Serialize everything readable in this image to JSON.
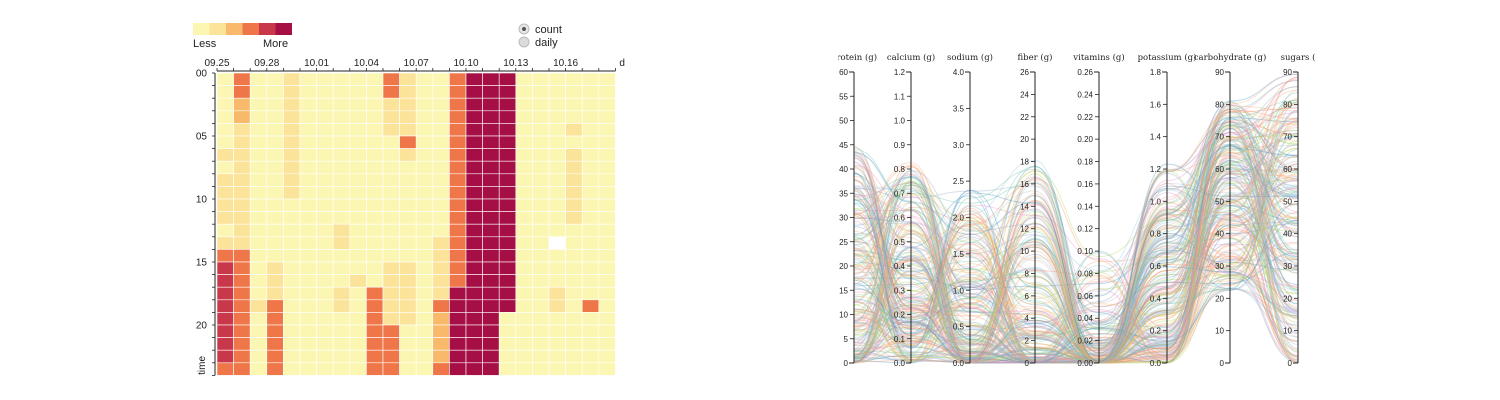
{
  "chart_data": [
    {
      "type": "heatmap",
      "legend": {
        "less_label": "Less",
        "more_label": "More",
        "colors": [
          "#fbf7b3",
          "#fbe39a",
          "#f8b96a",
          "#ef7648",
          "#c8384a",
          "#a50f45"
        ]
      },
      "toggle": [
        {
          "label": "count",
          "selected": true
        },
        {
          "label": "daily",
          "selected": false
        }
      ],
      "xlabel": "date",
      "ylabel": "time",
      "x_ticks": [
        {
          "label": "09.25",
          "col": 0
        },
        {
          "label": "09.28",
          "col": 3
        },
        {
          "label": "10.01",
          "col": 6
        },
        {
          "label": "10.04",
          "col": 9
        },
        {
          "label": "10.07",
          "col": 12
        },
        {
          "label": "10.10",
          "col": 15
        },
        {
          "label": "10.13",
          "col": 18
        },
        {
          "label": "10.16",
          "col": 21
        }
      ],
      "y_ticks": [
        {
          "label": "00",
          "row": 0
        },
        {
          "label": "05",
          "row": 5
        },
        {
          "label": "10",
          "row": 10
        },
        {
          "label": "15",
          "row": 15
        },
        {
          "label": "20",
          "row": 20
        }
      ],
      "grid": [
        [
          0,
          3,
          0,
          0,
          1,
          0,
          0,
          0,
          0,
          0,
          3,
          1,
          0,
          0,
          3,
          5,
          5,
          5,
          0,
          0,
          0,
          0,
          0,
          0
        ],
        [
          0,
          3,
          0,
          0,
          1,
          0,
          0,
          0,
          0,
          0,
          3,
          1,
          0,
          0,
          3,
          5,
          5,
          5,
          0,
          0,
          0,
          0,
          0,
          0
        ],
        [
          0,
          2,
          0,
          0,
          1,
          0,
          0,
          0,
          0,
          0,
          1,
          1,
          0,
          0,
          3,
          5,
          5,
          5,
          0,
          0,
          0,
          0,
          0,
          0
        ],
        [
          0,
          2,
          0,
          0,
          1,
          0,
          0,
          0,
          0,
          0,
          1,
          1,
          0,
          0,
          3,
          5,
          5,
          5,
          0,
          0,
          0,
          0,
          0,
          0
        ],
        [
          0,
          1,
          0,
          0,
          1,
          0,
          0,
          0,
          0,
          0,
          1,
          1,
          0,
          0,
          3,
          5,
          5,
          5,
          0,
          0,
          0,
          1,
          0,
          0
        ],
        [
          0,
          1,
          0,
          0,
          1,
          0,
          0,
          0,
          0,
          0,
          0,
          3,
          0,
          0,
          3,
          5,
          5,
          5,
          0,
          0,
          0,
          0,
          0,
          0
        ],
        [
          1,
          1,
          0,
          0,
          1,
          0,
          0,
          0,
          0,
          0,
          0,
          1,
          0,
          0,
          3,
          5,
          5,
          5,
          0,
          0,
          0,
          1,
          0,
          0
        ],
        [
          0,
          1,
          0,
          0,
          1,
          0,
          0,
          0,
          0,
          0,
          0,
          0,
          0,
          0,
          3,
          5,
          5,
          5,
          0,
          0,
          0,
          1,
          0,
          0
        ],
        [
          1,
          1,
          0,
          0,
          1,
          0,
          0,
          0,
          0,
          0,
          0,
          0,
          0,
          0,
          3,
          5,
          5,
          5,
          0,
          0,
          0,
          1,
          0,
          0
        ],
        [
          1,
          1,
          0,
          0,
          1,
          0,
          0,
          0,
          0,
          0,
          0,
          0,
          0,
          0,
          3,
          5,
          5,
          5,
          0,
          0,
          0,
          1,
          0,
          0
        ],
        [
          1,
          1,
          0,
          0,
          0,
          0,
          0,
          0,
          0,
          0,
          0,
          0,
          0,
          0,
          3,
          5,
          5,
          5,
          0,
          0,
          0,
          1,
          0,
          0
        ],
        [
          1,
          1,
          0,
          0,
          0,
          0,
          0,
          0,
          0,
          0,
          0,
          0,
          0,
          0,
          3,
          5,
          5,
          5,
          0,
          0,
          0,
          1,
          0,
          0
        ],
        [
          0,
          1,
          0,
          0,
          0,
          0,
          0,
          1,
          0,
          0,
          0,
          0,
          0,
          0,
          3,
          5,
          5,
          5,
          0,
          0,
          0,
          0,
          0,
          0
        ],
        [
          1,
          1,
          0,
          0,
          0,
          0,
          0,
          1,
          0,
          0,
          0,
          0,
          0,
          1,
          3,
          5,
          5,
          5,
          0,
          0,
          -1,
          0,
          0,
          0
        ],
        [
          3,
          3,
          0,
          0,
          0,
          0,
          0,
          0,
          0,
          0,
          0,
          0,
          0,
          1,
          3,
          5,
          5,
          5,
          0,
          0,
          0,
          0,
          0,
          0
        ],
        [
          4,
          3,
          0,
          1,
          0,
          0,
          0,
          0,
          0,
          0,
          1,
          1,
          0,
          1,
          3,
          5,
          5,
          5,
          0,
          0,
          0,
          0,
          0,
          0
        ],
        [
          4,
          3,
          0,
          1,
          0,
          0,
          0,
          0,
          1,
          0,
          1,
          1,
          0,
          1,
          3,
          5,
          5,
          5,
          0,
          0,
          0,
          0,
          0,
          0
        ],
        [
          4,
          3,
          0,
          1,
          0,
          0,
          0,
          1,
          0,
          3,
          1,
          1,
          0,
          1,
          5,
          5,
          5,
          5,
          0,
          0,
          1,
          0,
          0,
          0
        ],
        [
          4,
          3,
          1,
          3,
          0,
          0,
          0,
          1,
          0,
          3,
          1,
          1,
          0,
          3,
          5,
          5,
          5,
          5,
          0,
          0,
          1,
          0,
          3,
          0
        ],
        [
          4,
          3,
          0,
          3,
          0,
          0,
          0,
          0,
          0,
          3,
          1,
          1,
          0,
          2,
          5,
          5,
          5,
          0,
          0,
          0,
          0,
          0,
          0,
          0
        ],
        [
          4,
          3,
          0,
          3,
          0,
          0,
          0,
          0,
          0,
          3,
          3,
          0,
          0,
          2,
          5,
          5,
          5,
          0,
          0,
          0,
          0,
          0,
          0,
          0
        ],
        [
          4,
          3,
          0,
          3,
          0,
          0,
          0,
          0,
          0,
          3,
          3,
          0,
          0,
          2,
          5,
          5,
          5,
          0,
          0,
          0,
          0,
          0,
          0,
          0
        ],
        [
          4,
          3,
          0,
          3,
          0,
          0,
          0,
          0,
          0,
          3,
          3,
          0,
          0,
          2,
          5,
          5,
          5,
          0,
          0,
          0,
          0,
          0,
          0,
          0
        ],
        [
          3,
          3,
          0,
          3,
          0,
          0,
          0,
          0,
          0,
          3,
          3,
          0,
          0,
          3,
          5,
          5,
          5,
          0,
          0,
          0,
          0,
          0,
          0,
          0
        ]
      ]
    },
    {
      "type": "parallel_coordinates",
      "axes": [
        {
          "label": "protein (g)",
          "max": 60,
          "ticks": [
            "0",
            "5",
            "10",
            "15",
            "20",
            "25",
            "30",
            "35",
            "40",
            "45",
            "50",
            "55",
            "60"
          ]
        },
        {
          "label": "calcium (g)",
          "max": 1.2,
          "ticks": [
            "0.0",
            "0.1",
            "0.2",
            "0.3",
            "0.4",
            "0.5",
            "0.6",
            "0.7",
            "0.8",
            "0.9",
            "1.0",
            "1.1",
            "1.2"
          ]
        },
        {
          "label": "sodium (g)",
          "max": 4.0,
          "ticks": [
            "0.0",
            "0.5",
            "1.0",
            "1.5",
            "2.0",
            "2.5",
            "3.0",
            "3.5",
            "4.0"
          ]
        },
        {
          "label": "fiber (g)",
          "max": 26,
          "ticks": [
            "0",
            "2",
            "4",
            "6",
            "8",
            "10",
            "12",
            "14",
            "16",
            "18",
            "20",
            "22",
            "24",
            "26"
          ]
        },
        {
          "label": "vitamins (g)",
          "max": 0.26,
          "ticks": [
            "0.00",
            "0.02",
            "0.04",
            "0.06",
            "0.08",
            "0.10",
            "0.12",
            "0.14",
            "0.16",
            "0.18",
            "0.20",
            "0.22",
            "0.24",
            "0.26"
          ]
        },
        {
          "label": "potassium (g)",
          "max": 1.8,
          "ticks": [
            "0.0",
            "0.2",
            "0.4",
            "0.6",
            "0.8",
            "1.0",
            "1.2",
            "1.4",
            "1.6",
            "1.8"
          ]
        },
        {
          "label": "carbohydrate (g)",
          "max": 90,
          "ticks": [
            "0",
            "10",
            "20",
            "30",
            "40",
            "50",
            "60",
            "70",
            "80",
            "90"
          ]
        },
        {
          "label": "sugars (",
          "max": 90,
          "ticks": [
            "0",
            "10",
            "20",
            "30",
            "40",
            "50",
            "60",
            "70",
            "80",
            "90"
          ]
        }
      ],
      "series_colors": [
        "#f4a582",
        "#fdb863",
        "#92c5de",
        "#4393c3",
        "#66c2a5",
        "#a6d854",
        "#bdbdbd",
        "#e78ac3",
        "#8da0cb",
        "#fc8d62"
      ]
    }
  ]
}
